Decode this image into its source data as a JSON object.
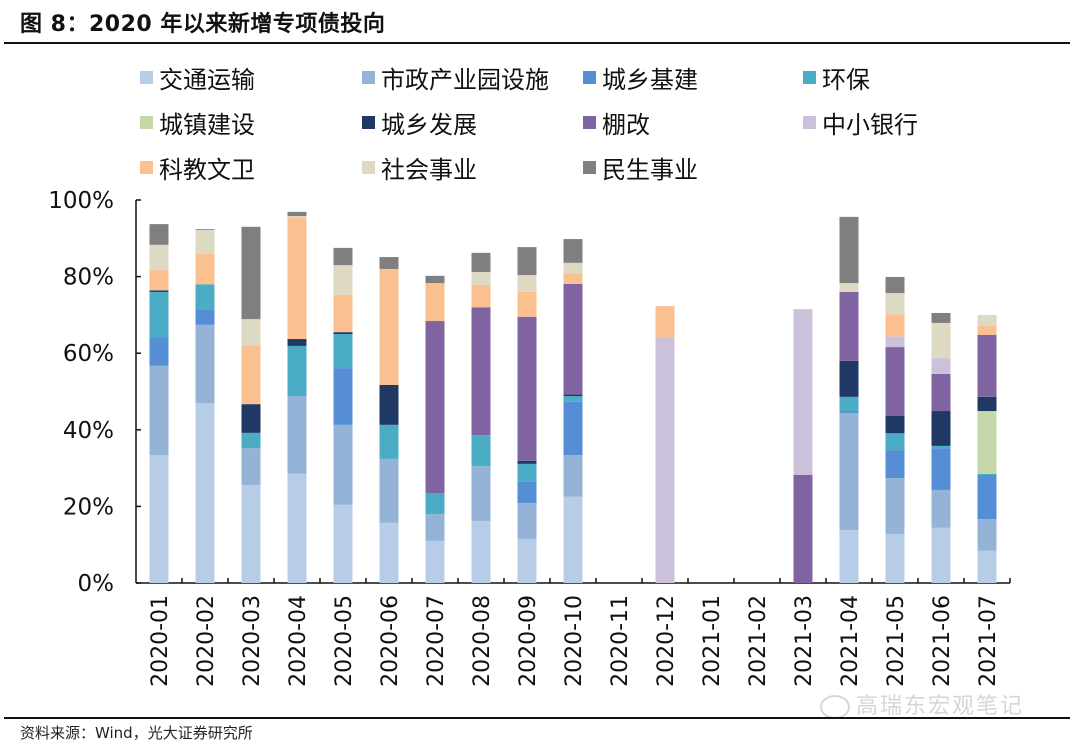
{
  "header": {
    "title": "图 8：2020 年以来新增专项债投向"
  },
  "footer": {
    "source": "资料来源：Wind，光大证券研究所",
    "watermark": "高瑞东宏观笔记"
  },
  "chart_data": {
    "type": "bar",
    "stacked": true,
    "title": "图 8：2020 年以来新增专项债投向",
    "xlabel": "",
    "ylabel": "",
    "ylim": [
      0,
      100
    ],
    "y_unit": "%",
    "y_ticks": [
      "0%",
      "20%",
      "40%",
      "60%",
      "80%",
      "100%"
    ],
    "legend_position": "top",
    "grid": false,
    "categories": [
      "2020-01",
      "2020-02",
      "2020-03",
      "2020-04",
      "2020-05",
      "2020-06",
      "2020-07",
      "2020-08",
      "2020-09",
      "2020-10",
      "2020-11",
      "2020-12",
      "2021-01",
      "2021-02",
      "2021-03",
      "2021-04",
      "2021-05",
      "2021-06",
      "2021-07"
    ],
    "series": [
      {
        "name": "交通运输",
        "color": "#b7cce6",
        "values": [
          33.4,
          47.0,
          25.6,
          28.5,
          20.4,
          15.7,
          11.0,
          16.2,
          11.5,
          22.5,
          0,
          0,
          0,
          0,
          0,
          13.8,
          12.8,
          14.4,
          8.4
        ]
      },
      {
        "name": "市政产业园设施",
        "color": "#95b3d7",
        "values": [
          23.3,
          20.4,
          9.6,
          20.3,
          20.9,
          16.7,
          7.0,
          14.3,
          9.4,
          10.9,
          0,
          0,
          0,
          0,
          0,
          30.6,
          14.6,
          9.9,
          8.3
        ]
      },
      {
        "name": "城乡基建",
        "color": "#558ed5",
        "values": [
          7.5,
          4.1,
          0,
          0,
          14.8,
          0,
          0,
          0,
          5.5,
          13.9,
          0,
          0,
          0,
          0,
          0,
          0.5,
          7.3,
          10.9,
          11.5
        ]
      },
      {
        "name": "环保",
        "color": "#4bacc6",
        "values": [
          11.8,
          6.5,
          4.0,
          13.1,
          8.9,
          8.9,
          5.5,
          8.1,
          4.7,
          1.5,
          0,
          0,
          0,
          0,
          0,
          3.7,
          4.4,
          0.6,
          0.3
        ]
      },
      {
        "name": "城镇建设",
        "color": "#c4d7a9",
        "values": [
          0,
          0,
          0,
          0,
          0,
          0,
          0,
          0,
          0,
          0,
          0,
          0,
          0,
          0,
          0,
          0,
          0,
          0,
          16.4
        ]
      },
      {
        "name": "城乡发展",
        "color": "#1f3864",
        "values": [
          0.4,
          0,
          7.5,
          1.8,
          0.5,
          10.4,
          0,
          0,
          0.8,
          0.4,
          0,
          0,
          0,
          0,
          0,
          9.4,
          4.5,
          9.1,
          3.7
        ]
      },
      {
        "name": "棚改",
        "color": "#8064a2",
        "values": [
          0,
          0,
          0,
          0,
          0,
          0,
          44.9,
          33.4,
          37.6,
          28.9,
          0,
          0,
          0,
          0,
          28.2,
          18.0,
          18.0,
          9.7,
          16.2
        ]
      },
      {
        "name": "中小银行",
        "color": "#ccc1da",
        "values": [
          0,
          0,
          0,
          0,
          0,
          0,
          0,
          0,
          0,
          0,
          0,
          64.0,
          0,
          0,
          43.3,
          0,
          2.8,
          4.1,
          0
        ]
      },
      {
        "name": "科教文卫",
        "color": "#fac090",
        "values": [
          5.3,
          7.9,
          15.4,
          31.6,
          9.7,
          30.3,
          9.9,
          5.8,
          6.5,
          2.8,
          0,
          8.3,
          0,
          0,
          0,
          0,
          5.8,
          0,
          2.3
        ]
      },
      {
        "name": "社会事业",
        "color": "#ddd9c3",
        "values": [
          6.6,
          6.3,
          6.8,
          0.5,
          7.8,
          0,
          0,
          3.4,
          4.4,
          2.7,
          0,
          0,
          0,
          0,
          0,
          2.3,
          5.5,
          9.2,
          2.9
        ]
      },
      {
        "name": "民生事业",
        "color": "#7f7f7f",
        "values": [
          5.4,
          0.2,
          24.1,
          1.1,
          4.5,
          3.1,
          1.9,
          5.0,
          7.3,
          6.2,
          0,
          0,
          0,
          0,
          0,
          17.3,
          4.2,
          2.6,
          0
        ]
      }
    ]
  }
}
